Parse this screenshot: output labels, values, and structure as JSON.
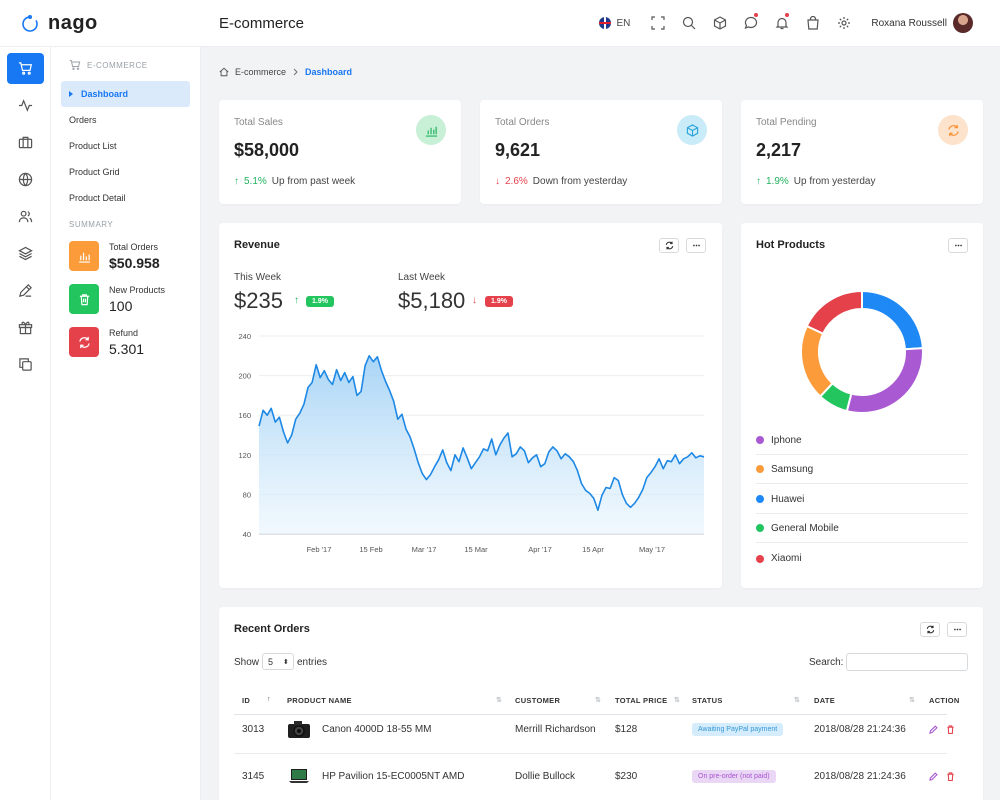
{
  "brand": {
    "name": "nago"
  },
  "header": {
    "title": "E-commerce",
    "lang": "EN",
    "user_name": "Roxana Roussell"
  },
  "subnav": {
    "section": "E-COMMERCE",
    "items": [
      "Dashboard",
      "Orders",
      "Product List",
      "Product Grid",
      "Product Detail"
    ],
    "summary_title": "SUMMARY",
    "summary": [
      {
        "label": "Total Orders",
        "value": "$50.958",
        "color": "#fb9b3a"
      },
      {
        "label": "New Products",
        "value": "100",
        "color": "#22c55e"
      },
      {
        "label": "Refund",
        "value": "5.301",
        "color": "#e5414b"
      }
    ]
  },
  "breadcrumb": {
    "root": "E-commerce",
    "current": "Dashboard"
  },
  "stats": [
    {
      "label": "Total Sales",
      "value": "$58,000",
      "pct": "5.1%",
      "text": "Up from past week",
      "dir": "up",
      "icon_color": "#c8f0d7"
    },
    {
      "label": "Total Orders",
      "value": "9,621",
      "pct": "2.6%",
      "text": "Down from yesterday",
      "dir": "down",
      "icon_color": "#c9ecf8"
    },
    {
      "label": "Total Pending",
      "value": "2,217",
      "pct": "1.9%",
      "text": "Up from yesterday",
      "dir": "up",
      "icon_color": "#fde2cc"
    }
  ],
  "revenue": {
    "title": "Revenue",
    "this_week_label": "This Week",
    "this_week_value": "$235",
    "this_week_pct": "1.9%",
    "last_week_label": "Last Week",
    "last_week_value": "$5,180",
    "last_week_pct": "1.9%"
  },
  "chart_data": [
    {
      "type": "area",
      "title": "Revenue",
      "xlabel": "",
      "ylabel": "",
      "ylim": [
        40,
        240
      ],
      "yticks": [
        40,
        80,
        120,
        160,
        200,
        240
      ],
      "xticks": [
        "Feb '17",
        "15 Feb",
        "Mar '17",
        "15 Mar",
        "Apr '17",
        "15 Apr",
        "May '17"
      ],
      "grid": true,
      "color": "#1e88e5",
      "y": [
        149,
        165,
        160,
        167,
        153,
        158,
        143,
        132,
        140,
        156,
        162,
        171,
        188,
        193,
        211,
        198,
        205,
        196,
        191,
        206,
        195,
        203,
        193,
        199,
        180,
        184,
        210,
        220,
        214,
        219,
        205,
        194,
        185,
        174,
        156,
        161,
        146,
        138,
        126,
        112,
        101,
        95,
        100,
        108,
        115,
        125,
        112,
        104,
        120,
        113,
        127,
        117,
        106,
        112,
        118,
        126,
        124,
        136,
        120,
        130,
        137,
        142,
        118,
        121,
        128,
        124,
        112,
        117,
        120,
        108,
        111,
        123,
        128,
        124,
        116,
        121,
        118,
        113,
        104,
        91,
        84,
        81,
        76,
        64,
        79,
        87,
        86,
        97,
        94,
        80,
        71,
        67,
        71,
        77,
        85,
        97,
        102,
        108,
        116,
        106,
        114,
        113,
        120,
        111,
        116,
        118,
        122,
        117,
        119,
        118
      ]
    },
    {
      "type": "pie",
      "title": "Hot Products",
      "donut": true,
      "categories": [
        "Iphone",
        "Samsung",
        "Huawei",
        "General Mobile",
        "Xiaomi"
      ],
      "values": [
        30,
        20,
        24,
        8,
        18
      ],
      "colors": [
        "#a95ad3",
        "#fb9b3a",
        "#1e88f5",
        "#22c55e",
        "#e5414b"
      ]
    }
  ],
  "hot_products": {
    "title": "Hot Products"
  },
  "orders": {
    "title": "Recent Orders",
    "show": "Show",
    "entries_value": "5",
    "entries": "entries",
    "search": "Search:",
    "columns": [
      "ID",
      "PRODUCT NAME",
      "CUSTOMER",
      "TOTAL PRICE",
      "STATUS",
      "DATE",
      "ACTION"
    ],
    "rows": [
      {
        "id": "3013",
        "product": "Canon 4000D 18-55 MM",
        "customer": "Merrill Richardson",
        "price": "$128",
        "status": "Awaiting PayPal payment",
        "date": "2018/08/28 21:24:36"
      },
      {
        "id": "3145",
        "product": "HP Pavilion 15-EC0005NT AMD",
        "customer": "Dollie Bullock",
        "price": "$230",
        "status": "On pre-order (not paid)",
        "date": "2018/08/28 21:24:36"
      }
    ]
  }
}
